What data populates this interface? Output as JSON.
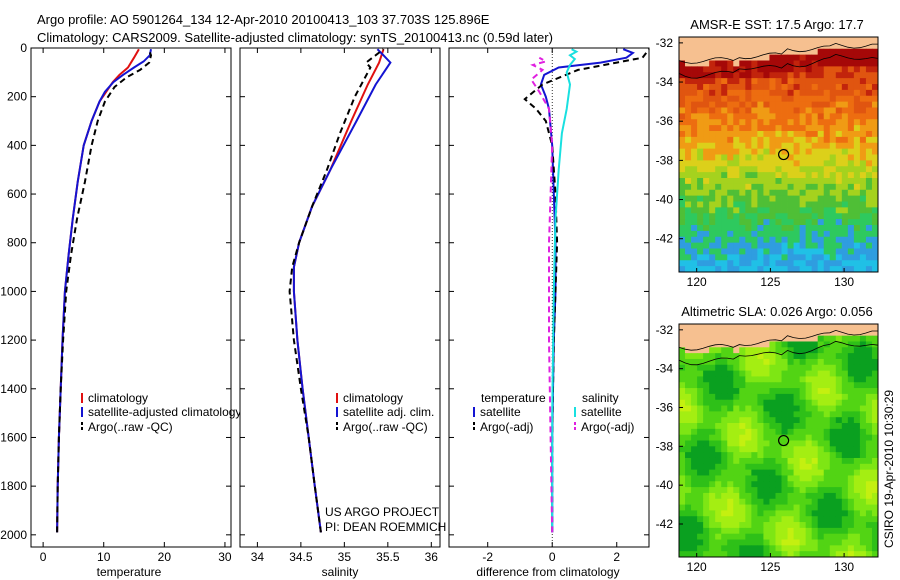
{
  "header": {
    "title_line1": "Argo profile: AO 5901264_134 12-Apr-2010 20100413_103 37.703S 125.896E",
    "title_line2": "Climatology: CARS2009. Satellite-adjusted climatology: synTS_20100413.nc (0.59d later)"
  },
  "credits": {
    "project": "US ARGO PROJECT",
    "pi": "PI: DEAN ROEMMICH",
    "stamp": "CSIRO 19-Apr-2010 10:30:29"
  },
  "colors": {
    "climatology": "#e01010",
    "satellite": "#1414d2",
    "argo": "#000000",
    "sal_satellite": "#19e0e0",
    "sal_argo": "#e020e0",
    "land": "#f6c090"
  },
  "chart_data": [
    {
      "type": "line",
      "name": "temperature-panel",
      "xlabel": "temperature",
      "ylabel": "",
      "xlim": [
        -2,
        31
      ],
      "ylim": [
        2050,
        0
      ],
      "xticks": [
        "0",
        "10",
        "20",
        "30"
      ],
      "yticks": [
        "0",
        "200",
        "400",
        "600",
        "800",
        "1000",
        "1200",
        "1400",
        "1600",
        "1800",
        "2000"
      ],
      "legend": [
        "climatology",
        "satellite-adjusted climatology",
        "Argo(..raw -QC)"
      ],
      "series": [
        {
          "name": "climatology",
          "style": "solid",
          "color": "#e01010",
          "x": [
            2.3,
            2.4,
            2.6,
            2.9,
            3.2,
            3.6,
            4.2,
            4.9,
            5.7,
            6.7,
            8.0,
            9.3,
            10.4,
            11.5,
            12.6,
            14.0,
            15.0,
            15.8
          ],
          "y": [
            1990,
            1800,
            1600,
            1400,
            1200,
            1000,
            850,
            700,
            550,
            400,
            300,
            220,
            180,
            140,
            110,
            80,
            40,
            5
          ]
        },
        {
          "name": "satellite-adjusted climatology",
          "style": "solid",
          "color": "#1414d2",
          "x": [
            2.3,
            2.4,
            2.6,
            2.9,
            3.2,
            3.6,
            4.2,
            4.9,
            5.7,
            6.7,
            8.0,
            9.3,
            10.2,
            11.6,
            13.2,
            15.0,
            16.6,
            17.6,
            17.8
          ],
          "y": [
            1990,
            1800,
            1600,
            1400,
            1200,
            1000,
            850,
            700,
            550,
            400,
            300,
            220,
            180,
            140,
            110,
            80,
            55,
            30,
            5
          ]
        },
        {
          "name": "Argo(..raw -QC)",
          "style": "dashed",
          "color": "#000000",
          "x": [
            2.3,
            2.4,
            2.6,
            2.9,
            3.3,
            3.8,
            4.6,
            5.6,
            6.9,
            8.0,
            9.0,
            10.2,
            11.8,
            13.8,
            16.0,
            17.5,
            17.8,
            17.4
          ],
          "y": [
            1990,
            1800,
            1600,
            1400,
            1200,
            1000,
            850,
            700,
            550,
            400,
            300,
            220,
            160,
            120,
            90,
            60,
            30,
            5
          ]
        }
      ]
    },
    {
      "type": "line",
      "name": "salinity-panel",
      "xlabel": "salinity",
      "ylabel": "",
      "xlim": [
        33.8,
        36.1
      ],
      "ylim": [
        2050,
        0
      ],
      "xticks": [
        "34",
        "34.5",
        "35",
        "35.5",
        "36"
      ],
      "legend": [
        "climatology",
        "satellite adj. clim.",
        "Argo(..raw -QC)"
      ],
      "series": [
        {
          "name": "climatology",
          "style": "solid",
          "color": "#e01010",
          "x": [
            34.73,
            34.66,
            34.59,
            34.52,
            34.46,
            34.42,
            34.42,
            34.48,
            34.63,
            34.84,
            35.08,
            35.27,
            35.4,
            35.45
          ],
          "y": [
            1990,
            1800,
            1600,
            1400,
            1200,
            1000,
            900,
            800,
            650,
            500,
            300,
            150,
            60,
            5
          ]
        },
        {
          "name": "satellite adj. clim.",
          "style": "solid",
          "color": "#1414d2",
          "x": [
            34.73,
            34.66,
            34.59,
            34.52,
            34.46,
            34.42,
            34.42,
            34.48,
            34.63,
            34.84,
            35.14,
            35.36,
            35.53,
            35.45,
            35.38
          ],
          "y": [
            1990,
            1800,
            1600,
            1400,
            1200,
            1000,
            900,
            800,
            650,
            500,
            300,
            150,
            60,
            30,
            5
          ]
        },
        {
          "name": "Argo(..raw -QC)",
          "style": "dashed",
          "color": "#000000",
          "x": [
            34.73,
            34.66,
            34.59,
            34.5,
            34.42,
            34.37,
            34.4,
            34.48,
            34.63,
            34.8,
            34.95,
            35.12,
            35.3,
            35.25,
            35.45
          ],
          "y": [
            1990,
            1800,
            1600,
            1400,
            1200,
            1000,
            900,
            800,
            650,
            500,
            350,
            200,
            80,
            60,
            5
          ]
        }
      ]
    },
    {
      "type": "line",
      "name": "difference-panel",
      "xlabel": "difference from climatology",
      "ylabel": "",
      "xlim": [
        -3.2,
        3.0
      ],
      "ylim": [
        2050,
        0
      ],
      "xticks": [
        "-2",
        "0",
        "2"
      ],
      "legend_temperature_header": "temperature",
      "legend_salinity_header": "salinity",
      "legend": [
        "satellite",
        "Argo(-adj)",
        "satellite",
        "Argo(-adj)"
      ],
      "series": [
        {
          "name": "temperature satellite",
          "style": "solid",
          "color": "#1414d2",
          "x": [
            0,
            0,
            0.05,
            0.1,
            0.1,
            0.05,
            0,
            -0.1,
            -0.2,
            -0.35,
            -0.25,
            0.2,
            1.5,
            2.3,
            2.5,
            2.2
          ],
          "y": [
            1990,
            1600,
            1200,
            1000,
            800,
            600,
            400,
            250,
            200,
            150,
            110,
            80,
            60,
            40,
            20,
            5
          ]
        },
        {
          "name": "temperature Argo(-adj)",
          "style": "dashed",
          "color": "#000000",
          "x": [
            0,
            0,
            0.05,
            0.1,
            0.15,
            0.1,
            0,
            -0.2,
            -0.5,
            -0.85,
            -0.3,
            0.8,
            2.0,
            2.8,
            3.0
          ],
          "y": [
            1990,
            1600,
            1200,
            1000,
            800,
            600,
            400,
            300,
            250,
            210,
            150,
            90,
            60,
            40,
            5
          ]
        },
        {
          "name": "salinity satellite",
          "style": "solid",
          "color": "#19e0e0",
          "x": [
            0,
            0,
            0.05,
            0.1,
            0.2,
            0.3,
            0.45,
            0.55,
            0.45,
            0.55,
            0.7,
            0.55,
            0.75,
            0.6
          ],
          "y": [
            1990,
            1500,
            1000,
            700,
            500,
            350,
            250,
            150,
            100,
            70,
            45,
            30,
            15,
            5
          ]
        },
        {
          "name": "salinity Argo(-adj)",
          "style": "dashed",
          "color": "#e020e0",
          "x": [
            0,
            -0.05,
            -0.1,
            -0.1,
            -0.1,
            -0.05,
            0,
            -0.1,
            -0.4,
            -0.65,
            -0.3,
            -0.6,
            -0.2,
            -0.4
          ],
          "y": [
            1990,
            1600,
            1200,
            1000,
            800,
            600,
            400,
            250,
            180,
            130,
            90,
            70,
            55,
            40
          ]
        }
      ]
    },
    {
      "type": "heatmap",
      "name": "sst-map",
      "title": "AMSR-E SST: 17.5 Argo: 17.7",
      "xlim": [
        118.8,
        132.3
      ],
      "ylim": [
        -43.7,
        -31.7
      ],
      "xticks": [
        "120",
        "125",
        "130"
      ],
      "yticks": [
        "-32",
        "-34",
        "-36",
        "-38",
        "-40",
        "-42"
      ],
      "marker": {
        "lon": 125.896,
        "lat": -37.703
      },
      "colorscale": [
        "#20c0e6",
        "#2f9de0",
        "#2ec95e",
        "#4fbf36",
        "#a5d21e",
        "#dcd01a",
        "#f09b14",
        "#ed6d10",
        "#e05510",
        "#c2240c",
        "#a50808"
      ]
    },
    {
      "type": "heatmap",
      "name": "sla-map",
      "title": "Altimetric SLA: 0.026 Argo: 0.056",
      "xlim": [
        118.8,
        132.3
      ],
      "ylim": [
        -43.7,
        -31.7
      ],
      "xticks": [
        "120",
        "125",
        "130"
      ],
      "yticks": [
        "-32",
        "-34",
        "-36",
        "-38",
        "-40",
        "-42"
      ],
      "marker": {
        "lon": 125.896,
        "lat": -37.703
      },
      "colorscale": [
        "#0aa020",
        "#2ec018",
        "#52d414",
        "#7ee614",
        "#a4ee12",
        "#c4f010"
      ]
    }
  ]
}
